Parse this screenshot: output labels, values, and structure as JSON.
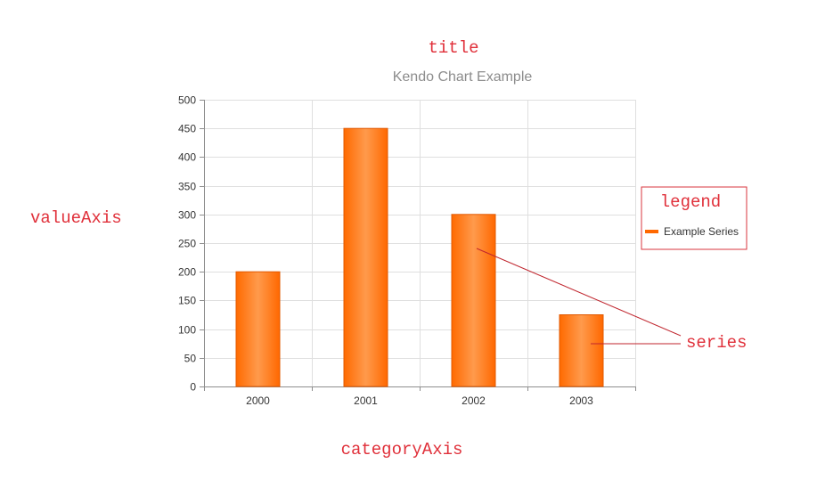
{
  "annotations": {
    "title": "title",
    "value_axis": "valueAxis",
    "legend": "legend",
    "series": "series",
    "category_axis": "categoryAxis"
  },
  "colors": {
    "annotation": "#e0303a",
    "bar": "#ff6800",
    "bar_light": "#ff9a4a",
    "grid": "#dfdfdf",
    "axis": "#8e8e8e"
  },
  "chart_data": {
    "type": "bar",
    "title": "Kendo Chart Example",
    "xlabel": "",
    "ylabel": "",
    "categories": [
      "2000",
      "2001",
      "2002",
      "2003"
    ],
    "series": [
      {
        "name": "Example Series",
        "values": [
          200,
          450,
          300,
          125
        ]
      }
    ],
    "ylim": [
      0,
      500
    ],
    "y_ticks": [
      0,
      50,
      100,
      150,
      200,
      250,
      300,
      350,
      400,
      450,
      500
    ],
    "grid": true,
    "legend": "right"
  }
}
